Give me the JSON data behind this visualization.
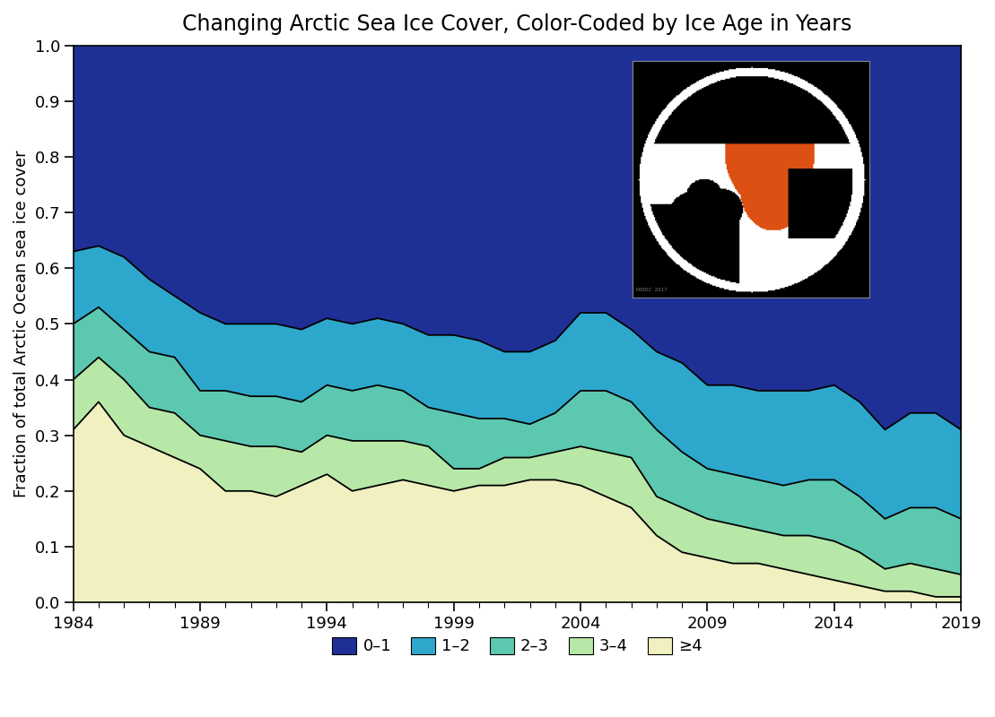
{
  "title": "Changing Arctic Sea Ice Cover, Color-Coded by Ice Age in Years",
  "ylabel": "Fraction of total Arctic Ocean sea ice cover",
  "years": [
    1984,
    1985,
    1986,
    1987,
    1988,
    1989,
    1990,
    1991,
    1992,
    1993,
    1994,
    1995,
    1996,
    1997,
    1998,
    1999,
    2000,
    2001,
    2002,
    2003,
    2004,
    2005,
    2006,
    2007,
    2008,
    2009,
    2010,
    2011,
    2012,
    2013,
    2014,
    2015,
    2016,
    2017,
    2018,
    2019
  ],
  "age_ge4": [
    0.31,
    0.36,
    0.3,
    0.28,
    0.26,
    0.24,
    0.2,
    0.2,
    0.19,
    0.21,
    0.23,
    0.2,
    0.21,
    0.22,
    0.21,
    0.2,
    0.21,
    0.21,
    0.22,
    0.22,
    0.21,
    0.19,
    0.17,
    0.12,
    0.09,
    0.08,
    0.07,
    0.07,
    0.06,
    0.05,
    0.04,
    0.03,
    0.02,
    0.02,
    0.01,
    0.01
  ],
  "age_3_4": [
    0.09,
    0.08,
    0.1,
    0.07,
    0.08,
    0.06,
    0.09,
    0.08,
    0.09,
    0.06,
    0.07,
    0.09,
    0.08,
    0.07,
    0.07,
    0.04,
    0.03,
    0.05,
    0.04,
    0.05,
    0.07,
    0.08,
    0.09,
    0.07,
    0.08,
    0.07,
    0.07,
    0.06,
    0.06,
    0.07,
    0.07,
    0.06,
    0.04,
    0.05,
    0.05,
    0.04
  ],
  "age_2_3": [
    0.1,
    0.09,
    0.09,
    0.1,
    0.1,
    0.08,
    0.09,
    0.09,
    0.09,
    0.09,
    0.09,
    0.09,
    0.1,
    0.09,
    0.07,
    0.1,
    0.09,
    0.07,
    0.06,
    0.07,
    0.1,
    0.11,
    0.1,
    0.12,
    0.1,
    0.09,
    0.09,
    0.09,
    0.09,
    0.1,
    0.11,
    0.1,
    0.09,
    0.1,
    0.11,
    0.1
  ],
  "age_1_2": [
    0.13,
    0.11,
    0.13,
    0.13,
    0.11,
    0.14,
    0.12,
    0.13,
    0.13,
    0.13,
    0.12,
    0.12,
    0.12,
    0.12,
    0.13,
    0.14,
    0.14,
    0.12,
    0.13,
    0.13,
    0.14,
    0.14,
    0.13,
    0.14,
    0.16,
    0.15,
    0.16,
    0.16,
    0.17,
    0.16,
    0.17,
    0.17,
    0.16,
    0.17,
    0.17,
    0.16
  ],
  "age_0_1": [
    0.37,
    0.36,
    0.38,
    0.42,
    0.45,
    0.48,
    0.5,
    0.5,
    0.5,
    0.51,
    0.49,
    0.5,
    0.49,
    0.5,
    0.52,
    0.52,
    0.53,
    0.55,
    0.55,
    0.53,
    0.48,
    0.48,
    0.51,
    0.55,
    0.57,
    0.61,
    0.61,
    0.62,
    0.62,
    0.62,
    0.61,
    0.64,
    0.69,
    0.66,
    0.66,
    0.69
  ],
  "colors": {
    "age_0_1": "#1e3096",
    "age_1_2": "#2da8cc",
    "age_2_3": "#5cc8b0",
    "age_3_4": "#b8e8a8",
    "age_ge4": "#f0f0c0"
  },
  "legend_labels": [
    "0–1",
    "1–2",
    "2–3",
    "3–4",
    "≥4"
  ],
  "ylim": [
    0.0,
    1.0
  ],
  "xlim": [
    1984,
    2019
  ],
  "yticks": [
    0.0,
    0.1,
    0.2,
    0.3,
    0.4,
    0.5,
    0.6,
    0.7,
    0.8,
    0.9,
    1.0
  ],
  "xticks": [
    1984,
    1989,
    1994,
    1999,
    2004,
    2009,
    2014,
    2019
  ],
  "title_fontsize": 17,
  "axis_fontsize": 13,
  "tick_fontsize": 13,
  "legend_fontsize": 13
}
